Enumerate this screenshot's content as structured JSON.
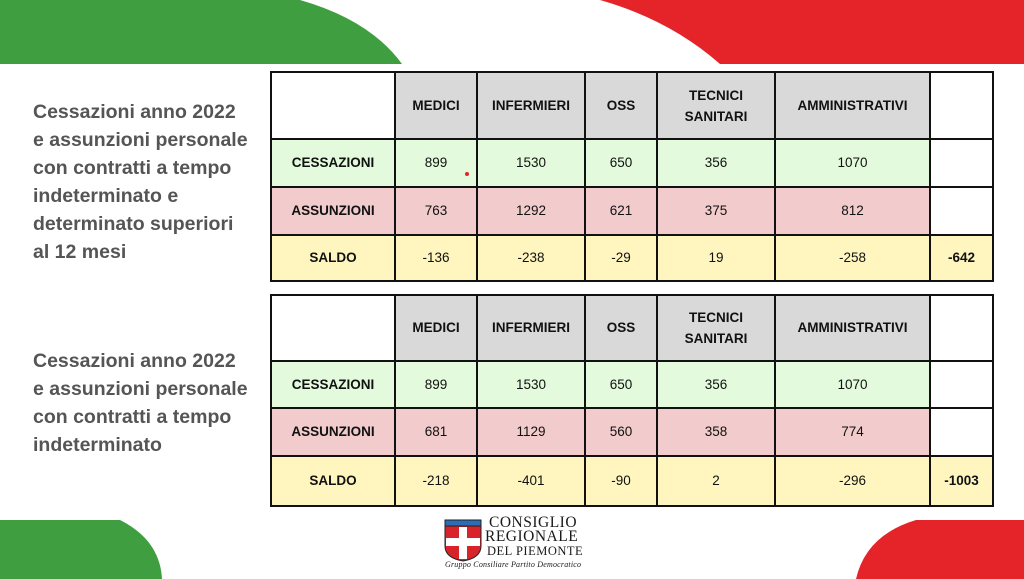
{
  "colors": {
    "green": "#3f9e3f",
    "red": "#e52429",
    "header_gray": "#d9d9d9",
    "cessazioni_bg": "#e3fbdc",
    "assunzioni_bg": "#f2cccd",
    "saldo_bg": "#fff6bf",
    "caption_text": "#555555"
  },
  "section1": {
    "caption": [
      "Cessazioni anno 2022",
      "e assunzioni personale",
      "con contratti a tempo",
      "indeterminato e",
      "determinato superiori",
      "al 12 mesi"
    ],
    "headers": [
      "MEDICI",
      "INFERMIERI",
      "OSS",
      "TECNICI SANITARI",
      "AMMINISTRATIVI"
    ],
    "rows": [
      {
        "label": "CESSAZIONI",
        "values": [
          "899",
          "1530",
          "650",
          "356",
          "1070"
        ],
        "total": ""
      },
      {
        "label": "ASSUNZIONI",
        "values": [
          "763",
          "1292",
          "621",
          "375",
          "812"
        ],
        "total": ""
      },
      {
        "label": "SALDO",
        "values": [
          "-136",
          "-238",
          "-29",
          "19",
          "-258"
        ],
        "total": "-642"
      }
    ]
  },
  "section2": {
    "caption": [
      "Cessazioni anno 2022",
      "e assunzioni personale",
      "con contratti a tempo",
      "indeterminato"
    ],
    "headers": [
      "MEDICI",
      "INFERMIERI",
      "OSS",
      "TECNICI SANITARI",
      "AMMINISTRATIVI"
    ],
    "rows": [
      {
        "label": "CESSAZIONI",
        "values": [
          "899",
          "1530",
          "650",
          "356",
          "1070"
        ],
        "total": ""
      },
      {
        "label": "ASSUNZIONI",
        "values": [
          "681",
          "1129",
          "560",
          "358",
          "774"
        ],
        "total": ""
      },
      {
        "label": "SALDO",
        "values": [
          "-218",
          "-401",
          "-90",
          "2",
          "-296"
        ],
        "total": "-1003"
      }
    ]
  },
  "logo": {
    "line1": "CONSIGLIO",
    "line2": "REGIONALE",
    "line3": "DEL PIEMONTE",
    "subtitle": "Gruppo Consiliare Partito Democratico",
    "icon": "piemonte-coat-of-arms-icon"
  }
}
